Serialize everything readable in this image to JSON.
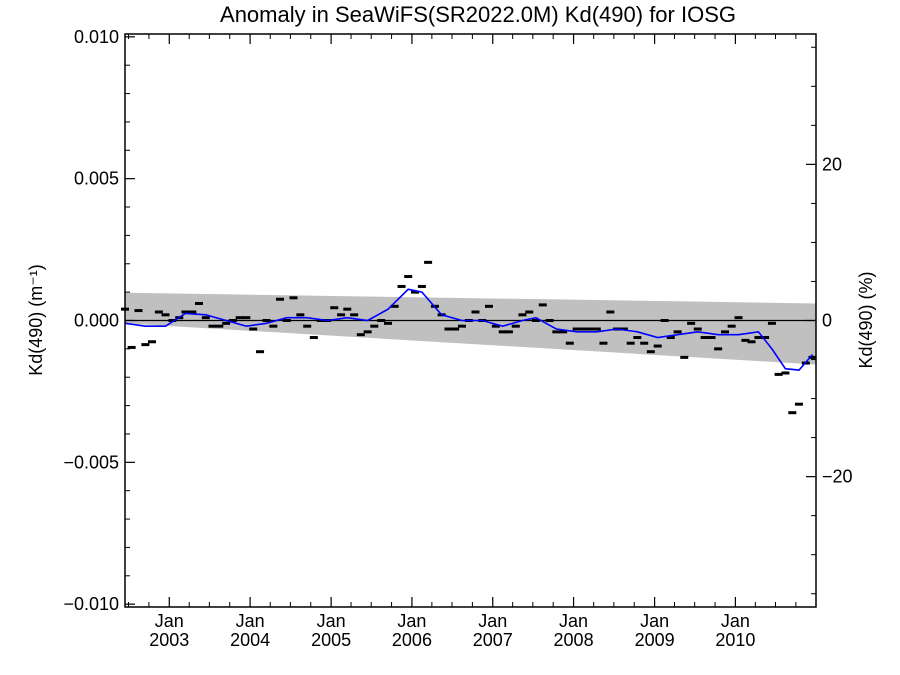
{
  "chart_data": {
    "type": "scatter",
    "title": "Anomaly in SeaWiFS(SR2022.0M) Kd(490) for IOSG",
    "ylabel_left": "Kd(490) (m⁻¹)",
    "ylabel_right": "Kd(490) (%)",
    "xlabel": "",
    "x_range": [
      "2002-06-15",
      "2010-12-31"
    ],
    "ylim_left": [
      -0.0101,
      0.0101
    ],
    "ylim_right_pct": [
      -36.7,
      36.7
    ],
    "x_ticks": [
      {
        "date": "2003-01-01",
        "month": "Jan",
        "year": "2003"
      },
      {
        "date": "2004-01-01",
        "month": "Jan",
        "year": "2004"
      },
      {
        "date": "2005-01-01",
        "month": "Jan",
        "year": "2005"
      },
      {
        "date": "2006-01-01",
        "month": "Jan",
        "year": "2006"
      },
      {
        "date": "2007-01-01",
        "month": "Jan",
        "year": "2007"
      },
      {
        "date": "2008-01-01",
        "month": "Jan",
        "year": "2008"
      },
      {
        "date": "2009-01-01",
        "month": "Jan",
        "year": "2009"
      },
      {
        "date": "2010-01-01",
        "month": "Jan",
        "year": "2010"
      }
    ],
    "y_ticks_left": [
      {
        "value": 0.01,
        "label": "0.010"
      },
      {
        "value": 0.005,
        "label": "0.005"
      },
      {
        "value": 0.0,
        "label": "0.000"
      },
      {
        "value": -0.005,
        "label": "−0.005"
      },
      {
        "value": -0.01,
        "label": "−0.010"
      }
    ],
    "y_ticks_right": [
      {
        "value": 20,
        "label": "20"
      },
      {
        "value": 0,
        "label": "0"
      },
      {
        "value": -20,
        "label": "−20"
      }
    ],
    "zero_line": 0.0,
    "band": {
      "color": "#c0c0c0",
      "upper": [
        [
          "2002-06-15",
          0.00098
        ],
        [
          "2010-12-31",
          0.0006
        ]
      ],
      "lower": [
        [
          "2002-06-15",
          -0.0001
        ],
        [
          "2010-12-31",
          -0.00155
        ]
      ]
    },
    "series": [
      {
        "kind": "points",
        "marker": "dash",
        "color": "#000000",
        "points": [
          [
            "2002-06-15",
            0.0004
          ],
          [
            "2002-07-15",
            -0.00095
          ],
          [
            "2002-08-15",
            0.00035
          ],
          [
            "2002-09-15",
            -0.00085
          ],
          [
            "2002-10-15",
            -0.00075
          ],
          [
            "2002-11-15",
            0.0003
          ],
          [
            "2002-12-15",
            0.0002
          ],
          [
            "2003-01-15",
            0.0
          ],
          [
            "2003-02-15",
            0.0001
          ],
          [
            "2003-03-15",
            0.0003
          ],
          [
            "2003-04-15",
            0.0003
          ],
          [
            "2003-05-15",
            0.0006
          ],
          [
            "2003-06-15",
            0.0001
          ],
          [
            "2003-07-15",
            -0.0002
          ],
          [
            "2003-08-15",
            -0.0002
          ],
          [
            "2003-09-15",
            -0.0001
          ],
          [
            "2003-10-15",
            0.0
          ],
          [
            "2003-11-15",
            0.0001
          ],
          [
            "2003-12-15",
            0.0001
          ],
          [
            "2004-01-15",
            -0.0003
          ],
          [
            "2004-02-15",
            -0.0011
          ],
          [
            "2004-03-15",
            0.0
          ],
          [
            "2004-04-15",
            -0.0002
          ],
          [
            "2004-05-15",
            0.00075
          ],
          [
            "2004-06-15",
            0.0
          ],
          [
            "2004-07-15",
            0.0008
          ],
          [
            "2004-08-15",
            0.0002
          ],
          [
            "2004-09-15",
            -0.0002
          ],
          [
            "2004-10-15",
            -0.0006
          ],
          [
            "2004-11-15",
            0.0
          ],
          [
            "2004-12-15",
            0.0
          ],
          [
            "2005-01-15",
            0.00045
          ],
          [
            "2005-02-15",
            0.0002
          ],
          [
            "2005-03-15",
            0.0004
          ],
          [
            "2005-04-15",
            0.0002
          ],
          [
            "2005-05-15",
            -0.0005
          ],
          [
            "2005-06-15",
            -0.0004
          ],
          [
            "2005-07-15",
            -0.0002
          ],
          [
            "2005-08-15",
            0.0
          ],
          [
            "2005-09-15",
            -0.0001
          ],
          [
            "2005-10-15",
            0.0005
          ],
          [
            "2005-11-15",
            0.0012
          ],
          [
            "2005-12-15",
            0.00155
          ],
          [
            "2006-01-15",
            0.001
          ],
          [
            "2006-02-15",
            0.0012
          ],
          [
            "2006-03-15",
            0.00205
          ],
          [
            "2006-04-15",
            0.0005
          ],
          [
            "2006-05-15",
            0.0002
          ],
          [
            "2006-06-15",
            -0.0003
          ],
          [
            "2006-07-15",
            -0.0003
          ],
          [
            "2006-08-15",
            -0.0002
          ],
          [
            "2006-09-15",
            0.0
          ],
          [
            "2006-10-15",
            0.0003
          ],
          [
            "2006-11-15",
            0.0
          ],
          [
            "2006-12-15",
            0.0005
          ],
          [
            "2007-01-15",
            -0.0002
          ],
          [
            "2007-02-15",
            -0.0004
          ],
          [
            "2007-03-15",
            -0.0004
          ],
          [
            "2007-04-15",
            -0.0002
          ],
          [
            "2007-05-15",
            0.0002
          ],
          [
            "2007-06-15",
            0.0003
          ],
          [
            "2007-07-15",
            0.0
          ],
          [
            "2007-08-15",
            0.00055
          ],
          [
            "2007-09-15",
            0.0
          ],
          [
            "2007-10-15",
            -0.0004
          ],
          [
            "2007-11-15",
            -0.0004
          ],
          [
            "2007-12-15",
            -0.0008
          ],
          [
            "2008-01-15",
            -0.0003
          ],
          [
            "2008-02-15",
            -0.0003
          ],
          [
            "2008-03-15",
            -0.0003
          ],
          [
            "2008-04-15",
            -0.0003
          ],
          [
            "2008-05-15",
            -0.0008
          ],
          [
            "2008-06-15",
            0.0003
          ],
          [
            "2008-07-15",
            -0.0003
          ],
          [
            "2008-08-15",
            -0.0003
          ],
          [
            "2008-09-15",
            -0.0008
          ],
          [
            "2008-10-15",
            -0.0006
          ],
          [
            "2008-11-15",
            -0.0008
          ],
          [
            "2008-12-15",
            -0.0011
          ],
          [
            "2009-01-15",
            -0.0009
          ],
          [
            "2009-02-15",
            0.0
          ],
          [
            "2009-03-15",
            -0.0006
          ],
          [
            "2009-04-15",
            -0.0004
          ],
          [
            "2009-05-15",
            -0.0013
          ],
          [
            "2009-06-15",
            -0.0001
          ],
          [
            "2009-07-15",
            -0.0003
          ],
          [
            "2009-08-15",
            -0.0006
          ],
          [
            "2009-09-15",
            -0.0006
          ],
          [
            "2009-10-15",
            -0.001
          ],
          [
            "2009-11-15",
            -0.0004
          ],
          [
            "2009-12-15",
            -0.0002
          ],
          [
            "2010-01-15",
            0.0001
          ],
          [
            "2010-02-15",
            -0.0007
          ],
          [
            "2010-03-15",
            -0.00075
          ],
          [
            "2010-04-15",
            -0.0006
          ],
          [
            "2010-05-15",
            -0.0006
          ],
          [
            "2010-06-15",
            -0.0001
          ],
          [
            "2010-07-15",
            -0.0019
          ],
          [
            "2010-08-15",
            -0.00185
          ],
          [
            "2010-09-15",
            -0.00325
          ],
          [
            "2010-10-15",
            -0.00295
          ],
          [
            "2010-11-15",
            -0.0015
          ],
          [
            "2010-12-15",
            -0.0013
          ]
        ]
      },
      {
        "kind": "line",
        "color": "#0000ff",
        "points": [
          [
            "2002-06-15",
            -0.0001
          ],
          [
            "2002-09-15",
            -0.0002
          ],
          [
            "2002-12-15",
            -0.0002
          ],
          [
            "2003-03-15",
            0.00025
          ],
          [
            "2003-06-15",
            0.0002
          ],
          [
            "2003-09-15",
            0.0
          ],
          [
            "2003-12-15",
            -0.0002
          ],
          [
            "2004-03-15",
            -0.0001
          ],
          [
            "2004-06-15",
            0.0001
          ],
          [
            "2004-09-15",
            0.0001
          ],
          [
            "2004-12-15",
            0.0
          ],
          [
            "2005-03-15",
            0.0001
          ],
          [
            "2005-06-15",
            0.0
          ],
          [
            "2005-09-15",
            0.0004
          ],
          [
            "2005-12-15",
            0.0011
          ],
          [
            "2006-02-15",
            0.001
          ],
          [
            "2006-05-15",
            0.0002
          ],
          [
            "2006-08-15",
            0.0
          ],
          [
            "2006-11-15",
            0.0
          ],
          [
            "2007-02-15",
            -0.0002
          ],
          [
            "2007-05-15",
            0.0
          ],
          [
            "2007-07-15",
            0.0001
          ],
          [
            "2007-10-15",
            -0.0003
          ],
          [
            "2008-01-15",
            -0.0004
          ],
          [
            "2008-04-15",
            -0.0004
          ],
          [
            "2008-07-15",
            -0.0003
          ],
          [
            "2008-10-15",
            -0.0004
          ],
          [
            "2009-01-15",
            -0.0006
          ],
          [
            "2009-04-15",
            -0.0005
          ],
          [
            "2009-07-15",
            -0.0004
          ],
          [
            "2009-10-15",
            -0.0005
          ],
          [
            "2010-01-15",
            -0.0005
          ],
          [
            "2010-04-15",
            -0.0004
          ],
          [
            "2010-06-15",
            -0.001
          ],
          [
            "2010-08-15",
            -0.0017
          ],
          [
            "2010-10-15",
            -0.00175
          ],
          [
            "2010-12-15",
            -0.0012
          ]
        ]
      }
    ]
  }
}
